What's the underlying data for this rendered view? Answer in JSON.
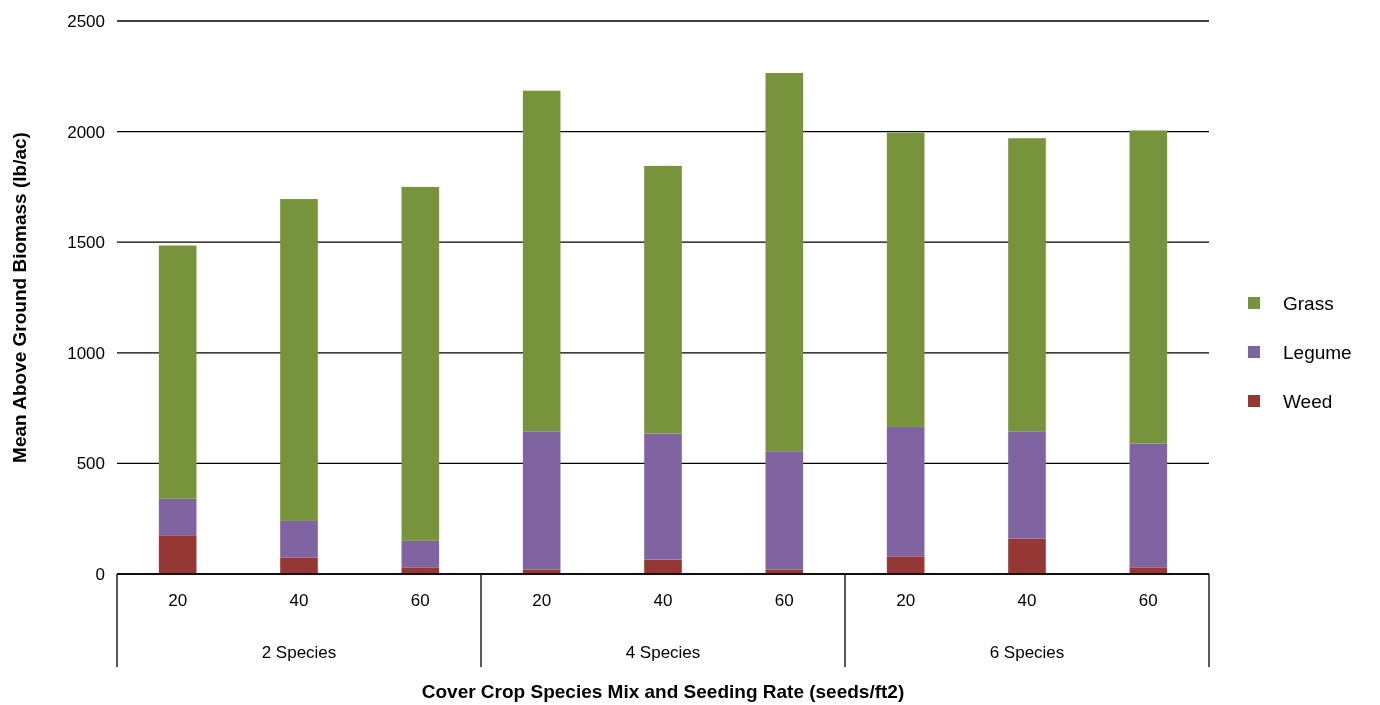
{
  "chart_data": {
    "type": "bar",
    "stacked": true,
    "xlabel": "Cover Crop Species Mix and Seeding Rate (seeds/ft2)",
    "ylabel": "Mean Above Ground Biomass (lb/ac)",
    "categories": [
      "20",
      "40",
      "60",
      "20",
      "40",
      "60",
      "20",
      "40",
      "60"
    ],
    "series": [
      {
        "name": "Weed",
        "color": "#953735",
        "values": [
          175,
          75,
          30,
          20,
          65,
          20,
          80,
          160,
          30
        ]
      },
      {
        "name": "Legume",
        "color": "#8064a2",
        "values": [
          165,
          165,
          120,
          625,
          570,
          535,
          585,
          485,
          560
        ]
      },
      {
        "name": "Grass",
        "color": "#77933c",
        "values": [
          1145,
          1455,
          1600,
          1540,
          1210,
          1710,
          1330,
          1325,
          1415
        ]
      }
    ],
    "ylim": [
      0,
      2500
    ],
    "yticks": [
      0,
      500,
      1000,
      1500,
      2000,
      2500
    ],
    "grid": "y",
    "legend": "right",
    "annotations": [
      "2 Species",
      "4 Species",
      "6 Species"
    ]
  }
}
